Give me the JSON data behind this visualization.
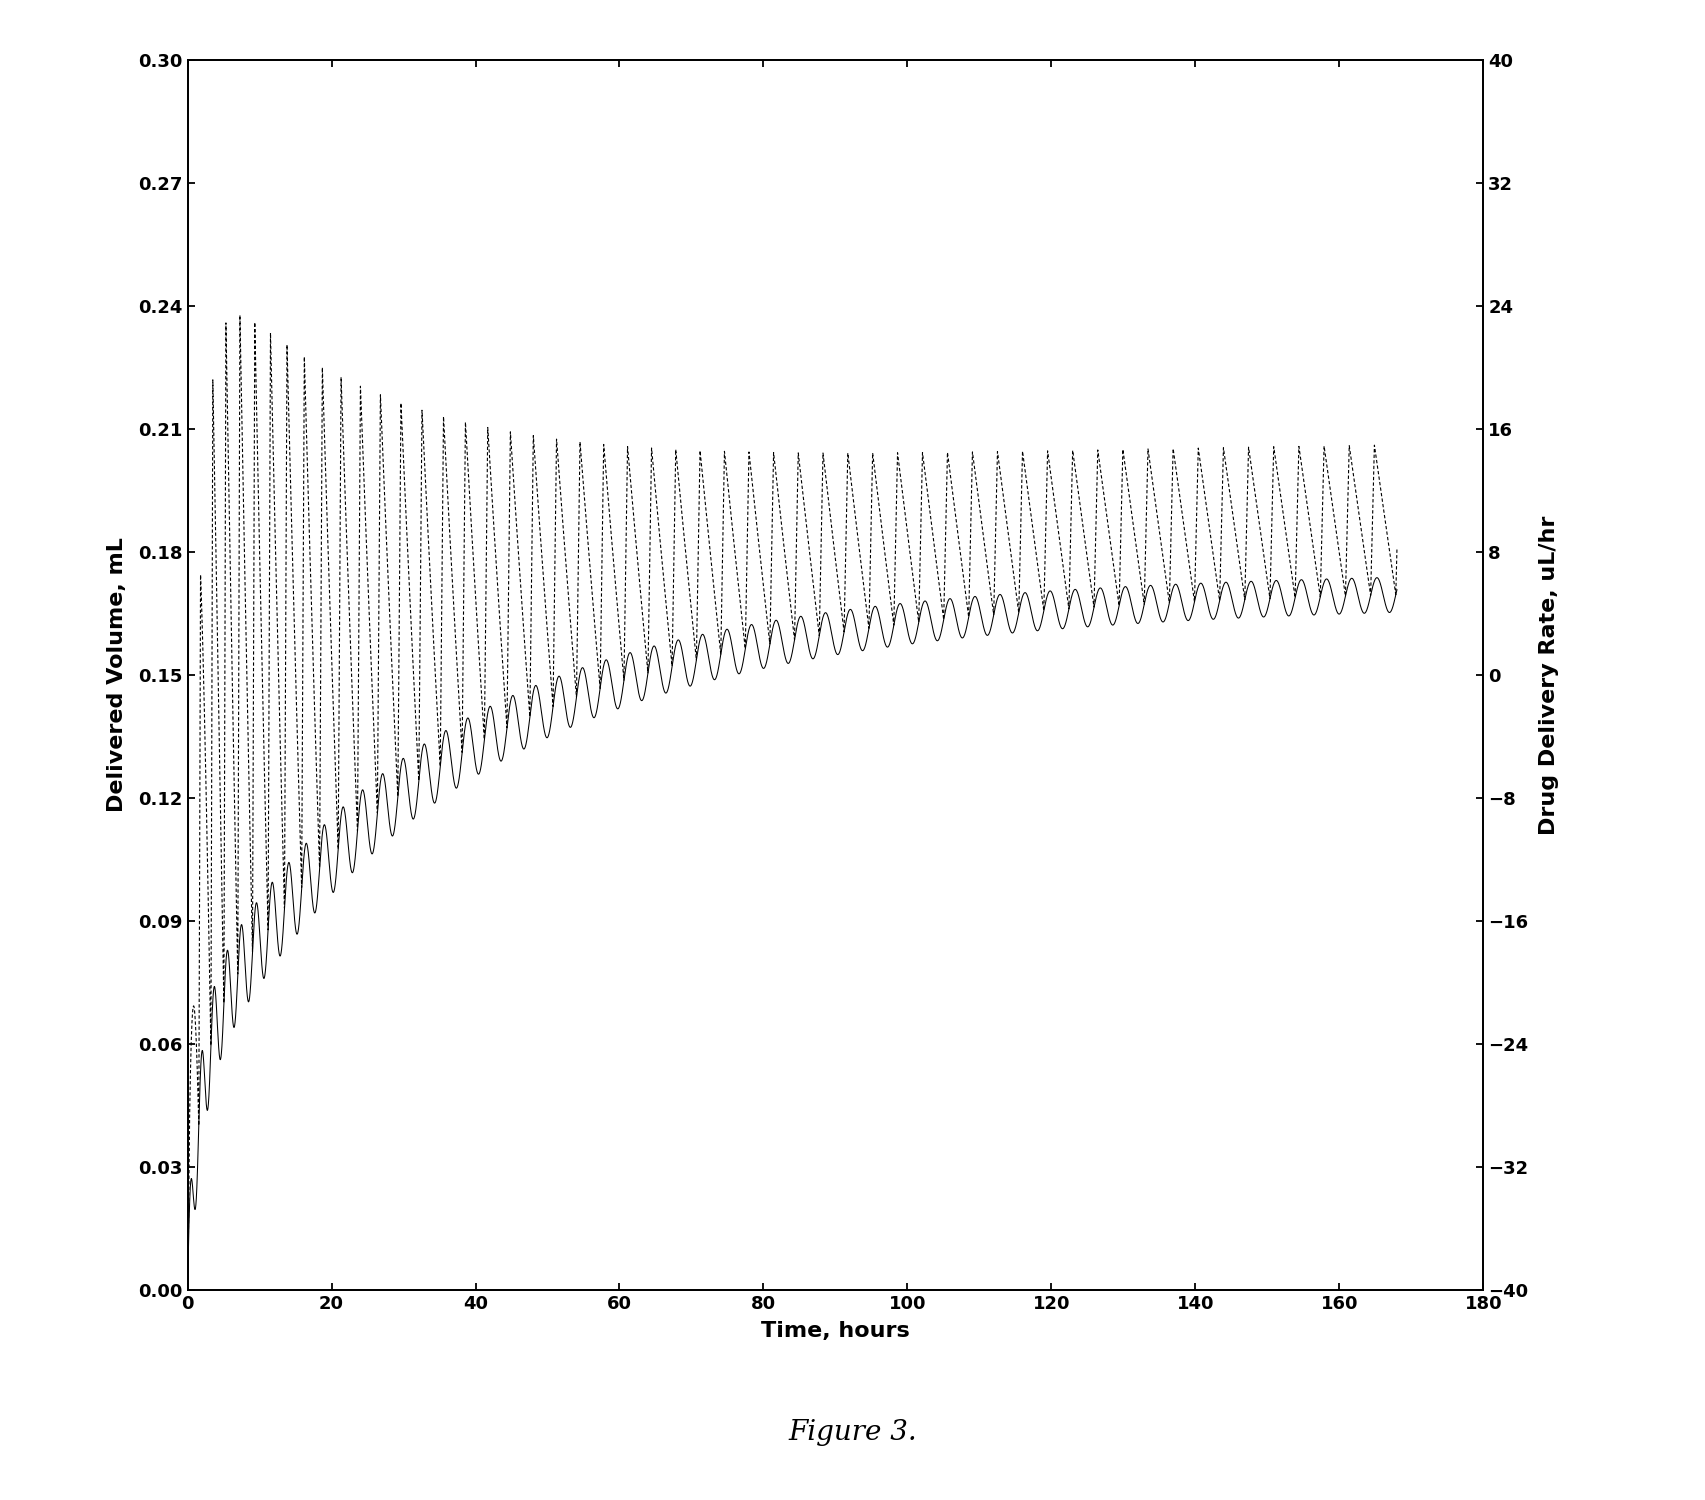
{
  "title": "Figure 3.",
  "xlabel": "Time, hours",
  "ylabel_left": "Delivered Volume, mL",
  "ylabel_right": "Drug Delivery Rate, uL/hr",
  "xlim": [
    0,
    180
  ],
  "ylim_left": [
    0,
    0.3
  ],
  "ylim_right": [
    -40,
    40
  ],
  "xticks": [
    0,
    20,
    40,
    60,
    80,
    100,
    120,
    140,
    160,
    180
  ],
  "yticks_left": [
    0,
    0.03,
    0.06,
    0.09,
    0.12,
    0.15,
    0.18,
    0.21,
    0.24,
    0.27,
    0.3
  ],
  "yticks_right": [
    -40,
    -32,
    -24,
    -16,
    -8,
    0,
    8,
    16,
    24,
    32,
    40
  ],
  "background_color": "#ffffff",
  "figsize": [
    17.05,
    15.0
  ],
  "dpi": 100
}
